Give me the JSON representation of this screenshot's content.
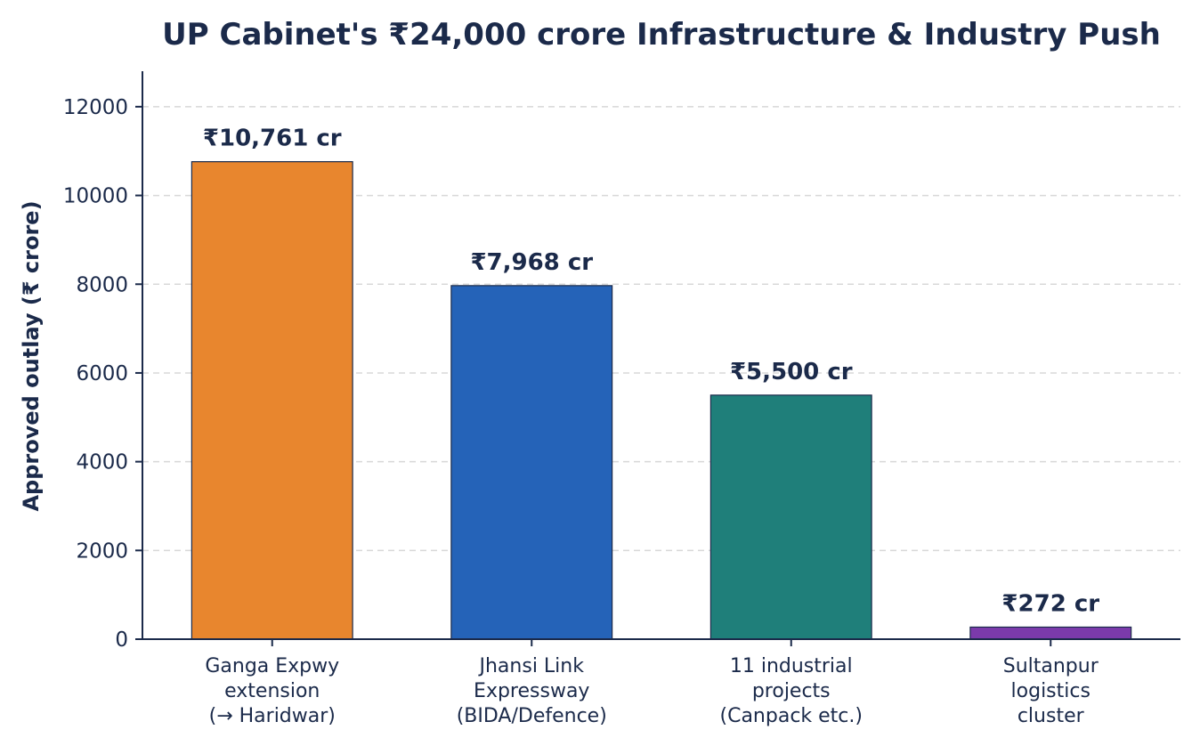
{
  "chart_data": {
    "type": "bar",
    "title": "UP Cabinet's ₹24,000 crore Infrastructure & Industry Push",
    "ylabel": "Approved outlay (₹ crore)",
    "xlabel": "",
    "ylim": [
      0,
      12800
    ],
    "yticks": [
      0,
      2000,
      4000,
      6000,
      8000,
      10000,
      12000
    ],
    "grid": "y-dashed",
    "categories": [
      [
        "Ganga Expwy",
        "extension",
        "(→ Haridwar)"
      ],
      [
        "Jhansi Link",
        "Expressway",
        "(BIDA/Defence)"
      ],
      [
        "11 industrial",
        "projects",
        "(Canpack etc.)"
      ],
      [
        "Sultanpur",
        "logistics",
        "cluster"
      ]
    ],
    "values": [
      10761,
      7968,
      5500,
      272
    ],
    "data_labels": [
      "₹10,761 cr",
      "₹7,968 cr",
      "₹5,500 cr",
      "₹272 cr"
    ],
    "colors": [
      "#e8862e",
      "#2563b8",
      "#1f7f7a",
      "#7b3aab"
    ]
  }
}
